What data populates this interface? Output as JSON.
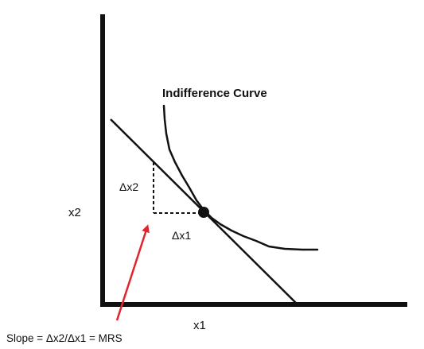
{
  "diagram": {
    "curve_label": "Indifference Curve",
    "x_axis_label": "x1",
    "y_axis_label": "x2",
    "delta_x1_label": "Δx1",
    "delta_x2_label": "Δx2",
    "slope_caption": "Slope = Δx2/Δx1 = MRS",
    "colors": {
      "ink": "#111111",
      "arrow": "#e0252d",
      "background": "#ffffff"
    }
  }
}
